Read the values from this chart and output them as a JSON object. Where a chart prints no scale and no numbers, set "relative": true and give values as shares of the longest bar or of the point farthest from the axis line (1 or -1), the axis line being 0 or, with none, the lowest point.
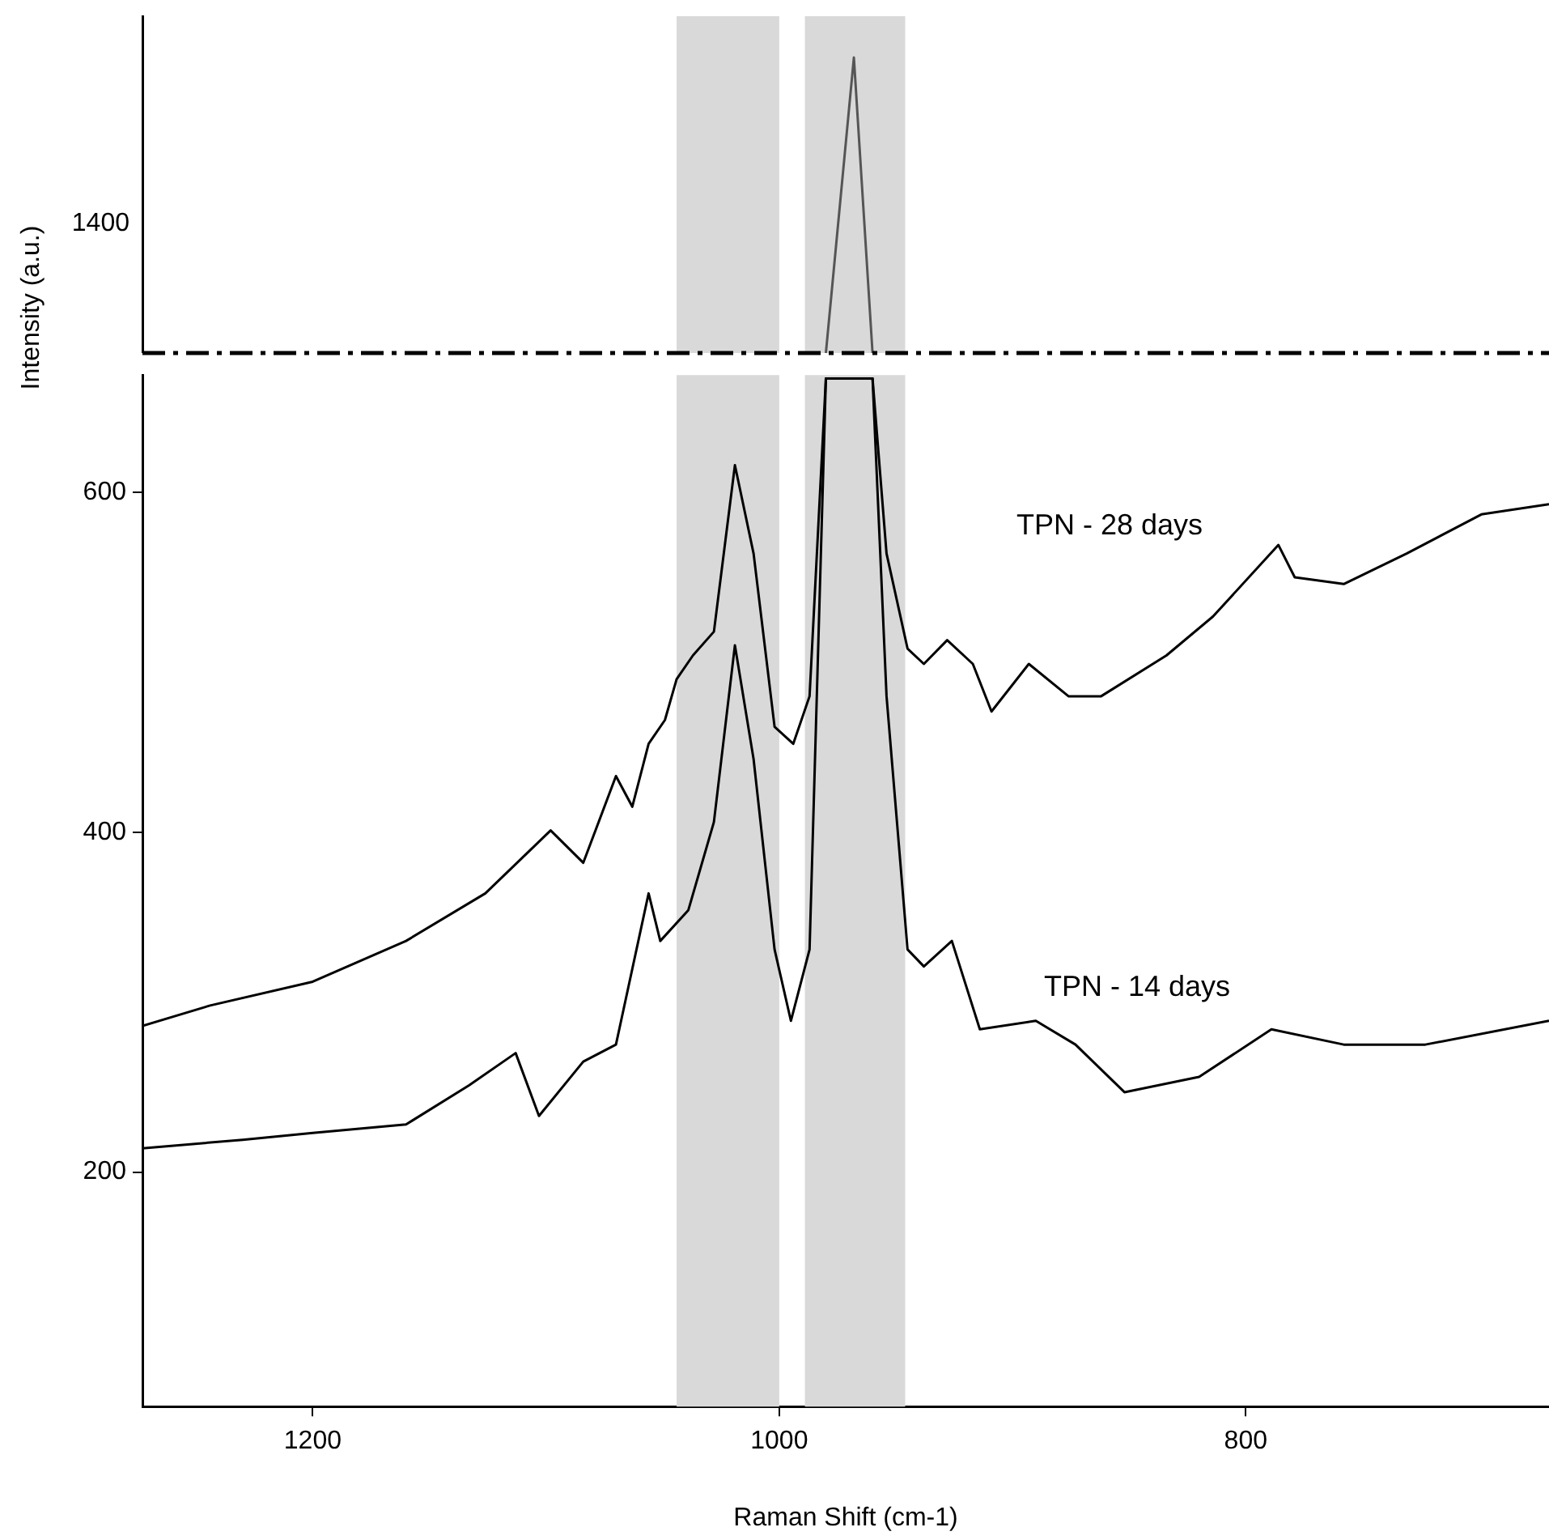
{
  "chart_data": [
    {
      "type": "line",
      "relative": true,
      "xlim": [
        1273,
        670
      ],
      "grid": false,
      "annotations": [
        "1400"
      ],
      "bands": [
        {
          "axis": "x",
          "from": 1044,
          "to": 1000,
          "color": "#d9d9d9"
        },
        {
          "axis": "x",
          "from": 989,
          "to": 946,
          "color": "#d9d9d9"
        }
      ],
      "series": [
        {
          "color": "#555555",
          "x": [
            980,
            968,
            960
          ],
          "values": [
            0,
            1,
            0
          ]
        }
      ]
    },
    {
      "type": "line",
      "xlim": [
        1273,
        670
      ],
      "ylim": [
        62,
        669
      ],
      "xticks": [
        1200,
        1000,
        800
      ],
      "yticks": [
        200,
        400,
        600
      ],
      "grid": false,
      "xlabel": "Raman Shift (cm-1)",
      "ylabel": "Intensity (a.u.)",
      "bands": [
        {
          "axis": "x",
          "from": 1044,
          "to": 1000,
          "color": "#d9d9d9"
        },
        {
          "axis": "x",
          "from": 989,
          "to": 946,
          "color": "#d9d9d9"
        }
      ],
      "annotations": [
        "TPN - 28 days",
        "TPN - 14 days"
      ],
      "series": [
        {
          "color": "#000000",
          "x": [
            1273,
            1244,
            1200,
            1160,
            1126,
            1098,
            1084,
            1070,
            1063,
            1056,
            1049,
            1044,
            1037,
            1028,
            1019,
            1011,
            1002,
            994,
            987,
            980,
            960,
            954,
            945,
            938,
            928,
            917,
            909,
            893,
            876,
            862,
            834,
            814,
            786,
            779,
            758,
            731,
            699,
            670
          ],
          "values": [
            286,
            298,
            312,
            336,
            364,
            401,
            382,
            433,
            415,
            452,
            466,
            490,
            504,
            518,
            616,
            564,
            462,
            452,
            480,
            667,
            667,
            564,
            508,
            499,
            513,
            499,
            471,
            499,
            480,
            480,
            504,
            527,
            569,
            550,
            546,
            564,
            587,
            593
          ]
        },
        {
          "color": "#000000",
          "x": [
            1273,
            1230,
            1200,
            1160,
            1133,
            1113,
            1103,
            1084,
            1070,
            1056,
            1051,
            1039,
            1028,
            1019,
            1011,
            1002,
            995,
            987,
            980,
            960,
            954,
            945,
            938,
            926,
            914,
            890,
            873,
            852,
            820,
            789,
            758,
            723,
            670
          ],
          "values": [
            214,
            219,
            223,
            228,
            251,
            270,
            233,
            265,
            275,
            364,
            336,
            354,
            406,
            510,
            443,
            331,
            289,
            331,
            667,
            667,
            480,
            331,
            321,
            336,
            284,
            289,
            275,
            247,
            256,
            284,
            275,
            275,
            289
          ]
        }
      ]
    }
  ]
}
